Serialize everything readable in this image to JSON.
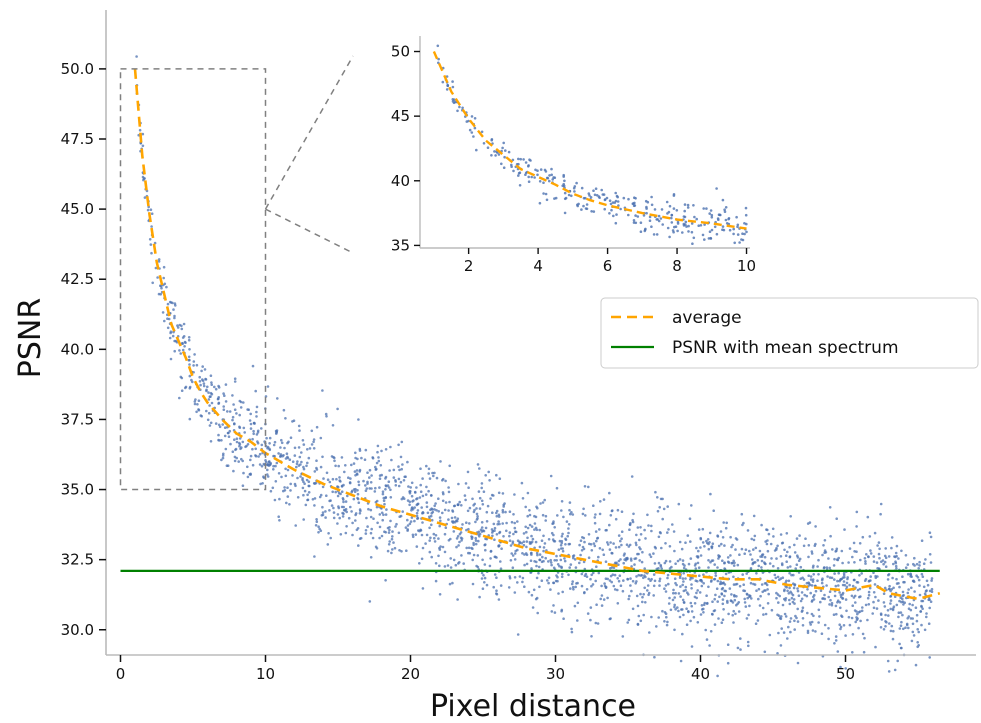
{
  "chart_data": {
    "type": "scatter",
    "xlabel": "Pixel distance",
    "ylabel": "PSNR",
    "xlim": [
      -1,
      59
    ],
    "ylim": [
      29.1,
      52.1
    ],
    "xticks": [
      0,
      10,
      20,
      30,
      40,
      50
    ],
    "yticks": [
      30.0,
      32.5,
      35.0,
      37.5,
      40.0,
      42.5,
      45.0,
      47.5,
      50.0
    ],
    "xtick_labels": [
      "0",
      "10",
      "20",
      "30",
      "40",
      "50"
    ],
    "ytick_labels": [
      "30.0",
      "32.5",
      "35.0",
      "37.5",
      "40.0",
      "42.5",
      "45.0",
      "47.5",
      "50.0"
    ],
    "grid": false,
    "legend_position": "right",
    "legend": {
      "average": "average",
      "mean_spectrum": "PSNR with mean spectrum"
    },
    "colors": {
      "scatter": "#4c72b0",
      "average": "#ffa500",
      "mean_spectrum": "#008000",
      "zoom_box": "#808080",
      "axis": "#bbbbbb"
    },
    "series": [
      {
        "name": "average",
        "style": "dashed",
        "x": [
          1,
          1.5,
          2,
          2.5,
          3,
          3.5,
          4,
          4.5,
          5,
          5.5,
          6,
          7,
          8,
          9,
          10,
          12,
          14,
          16,
          18,
          20,
          22,
          24,
          26,
          28,
          30,
          32,
          34,
          36,
          38,
          40,
          42,
          44,
          46,
          48,
          50,
          52,
          53,
          55,
          56.5
        ],
        "y": [
          50.0,
          46.9,
          44.8,
          43.1,
          42.0,
          40.9,
          40.3,
          39.7,
          39.0,
          38.5,
          38.1,
          37.5,
          37.0,
          36.7,
          36.3,
          35.7,
          35.2,
          34.8,
          34.4,
          34.1,
          33.8,
          33.5,
          33.2,
          32.9,
          32.7,
          32.5,
          32.3,
          32.1,
          32.0,
          31.9,
          31.8,
          31.8,
          31.6,
          31.5,
          31.4,
          31.6,
          31.3,
          31.1,
          31.3
        ]
      },
      {
        "name": "PSNR with mean spectrum",
        "style": "solid",
        "x": [
          0,
          56.5
        ],
        "y": [
          32.1,
          32.1
        ]
      }
    ],
    "scatter_model": {
      "description_points_follow_average_curve_with_spread": true,
      "x_range": [
        1,
        56
      ],
      "spread_near_10": 0.9,
      "spread_far": 1.1
    },
    "zoom_box": {
      "x": [
        0,
        10
      ],
      "y": [
        35,
        50
      ]
    },
    "inset": {
      "xlim": [
        0.6,
        10.1
      ],
      "ylim": [
        34.8,
        51.2
      ],
      "xticks": [
        2,
        4,
        6,
        8,
        10
      ],
      "yticks": [
        35,
        40,
        45,
        50
      ],
      "xtick_labels": [
        "2",
        "4",
        "6",
        "8",
        "10"
      ],
      "ytick_labels": [
        "35",
        "40",
        "45",
        "50"
      ]
    }
  }
}
